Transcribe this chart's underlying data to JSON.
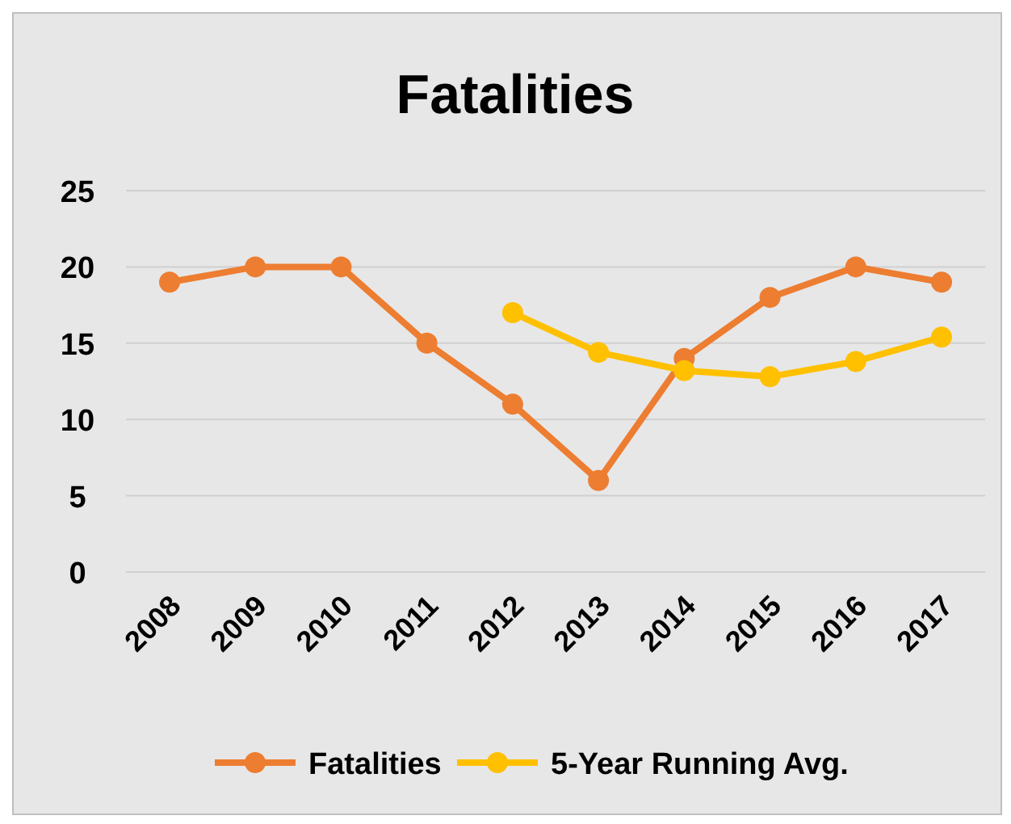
{
  "chart_data": {
    "type": "line",
    "title": "Fatalities",
    "categories": [
      "2008",
      "2009",
      "2010",
      "2011",
      "2012",
      "2013",
      "2014",
      "2015",
      "2016",
      "2017"
    ],
    "series": [
      {
        "name": "Fatalities",
        "color": "#ed7d31",
        "values": [
          19,
          20,
          20,
          15,
          11,
          6,
          14,
          18,
          20,
          19
        ]
      },
      {
        "name": "5-Year Running Avg.",
        "color": "#ffc000",
        "values": [
          null,
          null,
          null,
          null,
          17,
          14.4,
          13.2,
          12.8,
          13.8,
          15.4
        ]
      }
    ],
    "ylim": [
      0,
      25
    ],
    "yticks": [
      0,
      5,
      10,
      15,
      20,
      25
    ],
    "grid": "y",
    "legend": "bottom",
    "marker": "circle",
    "line_style": "solid"
  }
}
